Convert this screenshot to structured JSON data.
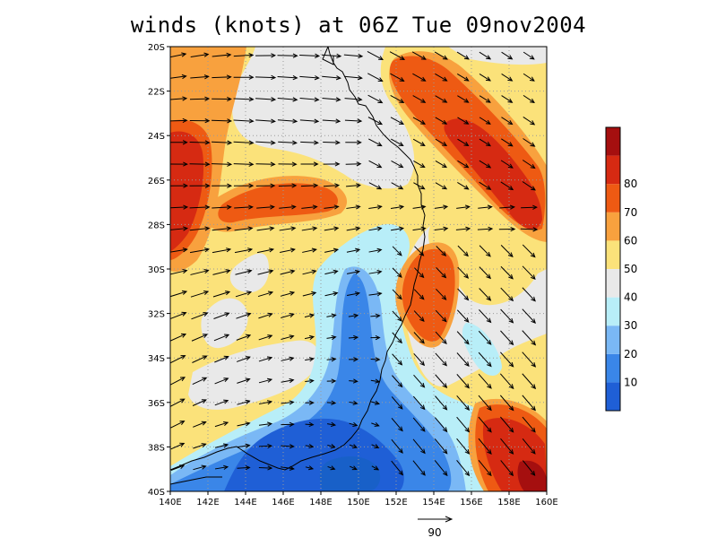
{
  "title": "winds (knots) at 06Z Tue 09nov2004",
  "map": {
    "lon_ticks": [
      "140E",
      "142E",
      "144E",
      "146E",
      "148E",
      "150E",
      "152E",
      "154E",
      "156E",
      "158E",
      "160E"
    ],
    "lat_ticks": [
      "20S",
      "22S",
      "24S",
      "26S",
      "28S",
      "30S",
      "32S",
      "34S",
      "36S",
      "38S",
      "40S"
    ],
    "lon_range": [
      140,
      160
    ],
    "lat_range": [
      -20,
      -40
    ]
  },
  "colorbar": {
    "labels": [
      "10",
      "20",
      "30",
      "40",
      "50",
      "60",
      "70",
      "80"
    ],
    "colors": [
      "#1f5fd6",
      "#3a86e8",
      "#7ab8f5",
      "#b8eef8",
      "#e9e9e9",
      "#fbe27a",
      "#f8a13e",
      "#ee5a13",
      "#d62a12",
      "#a50f0f"
    ]
  },
  "reference_vector": {
    "label": "90"
  },
  "colors": {
    "lightgray": "#e9e9e9",
    "yellow": "#fbe27a",
    "orange": "#f8a13e",
    "darkorange": "#ee5a13",
    "red": "#d62a12",
    "cyan": "#b8eef8",
    "lightblue": "#7ab8f5",
    "blue": "#3a86e8",
    "darkblue": "#1f5fd6"
  }
}
